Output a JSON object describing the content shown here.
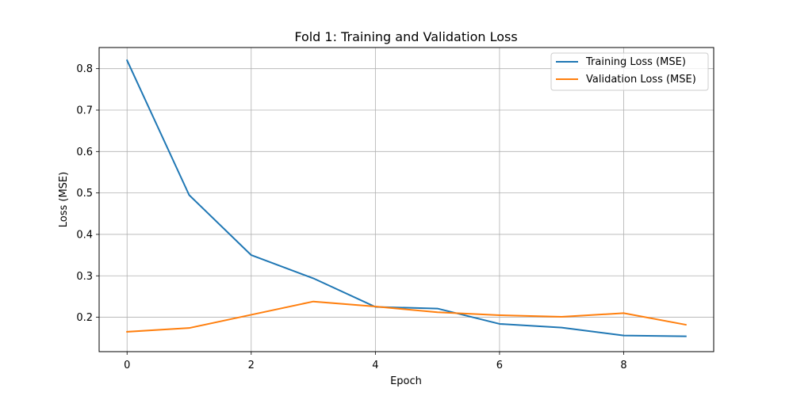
{
  "chart_data": {
    "type": "line",
    "title": "Fold 1: Training and Validation Loss",
    "xlabel": "Epoch",
    "ylabel": "Loss (MSE)",
    "xlim": [
      -0.45,
      9.45
    ],
    "ylim": [
      0.117,
      0.851
    ],
    "x_ticks": [
      0,
      2,
      4,
      6,
      8
    ],
    "y_ticks": [
      0.2,
      0.3,
      0.4,
      0.5,
      0.6,
      0.7,
      0.8
    ],
    "x_tick_labels": [
      "0",
      "2",
      "4",
      "6",
      "8"
    ],
    "y_tick_labels": [
      "0.2",
      "0.3",
      "0.4",
      "0.5",
      "0.6",
      "0.7",
      "0.8"
    ],
    "grid": true,
    "legend_position": "top-right",
    "x": [
      0,
      1,
      2,
      3,
      4,
      5,
      6,
      7,
      8,
      9
    ],
    "series": [
      {
        "name": "Training Loss (MSE)",
        "color": "#1f77b4",
        "values": [
          0.82,
          0.495,
          0.35,
          0.294,
          0.225,
          0.221,
          0.184,
          0.175,
          0.156,
          0.154
        ]
      },
      {
        "name": "Validation Loss (MSE)",
        "color": "#ff7f0e",
        "values": [
          0.165,
          0.174,
          0.206,
          0.238,
          0.226,
          0.212,
          0.205,
          0.201,
          0.21,
          0.182
        ]
      }
    ]
  }
}
